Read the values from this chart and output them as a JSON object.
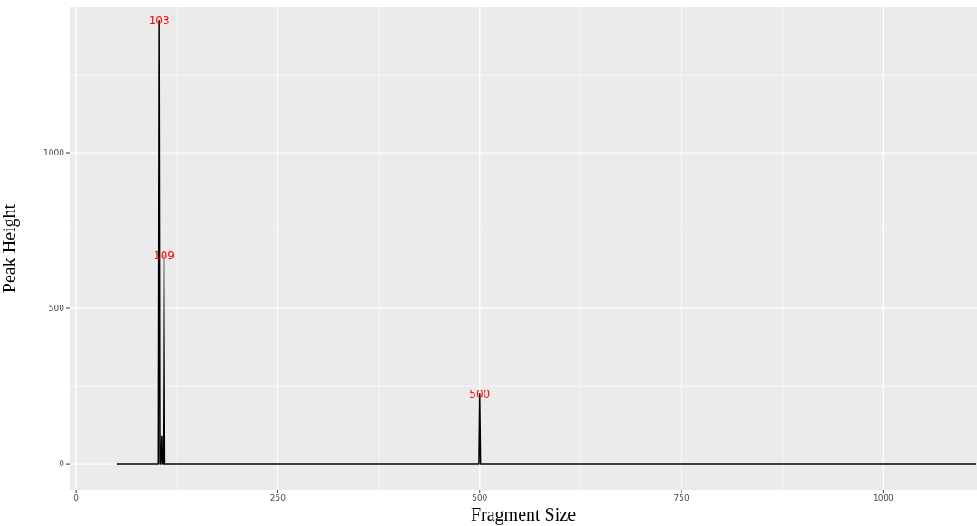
{
  "chart_data": {
    "type": "line",
    "xlabel": "Fragment Size",
    "ylabel": "Peak Height",
    "series": [
      {
        "color": "#000000",
        "x": [
          50,
          102,
          103,
          104,
          105,
          106,
          107,
          108,
          109,
          110,
          499,
          500,
          501,
          1115
        ],
        "values": [
          0,
          0,
          1425,
          0,
          0,
          90,
          0,
          0,
          670,
          0,
          0,
          225,
          0,
          0
        ]
      }
    ],
    "xlim": [
      -8,
      1116
    ],
    "xticks": [
      0,
      250,
      500,
      750,
      1000
    ],
    "ylim": [
      -84,
      1468
    ],
    "yticks": [
      0,
      500,
      1000
    ],
    "grid": true,
    "legend": false,
    "marker": "none",
    "line_style": "solid",
    "annotations": [
      {
        "text": "103",
        "x": 103,
        "y": 1425
      },
      {
        "text": "109",
        "x": 109,
        "y": 670
      },
      {
        "text": "500",
        "x": 500,
        "y": 225
      }
    ]
  }
}
